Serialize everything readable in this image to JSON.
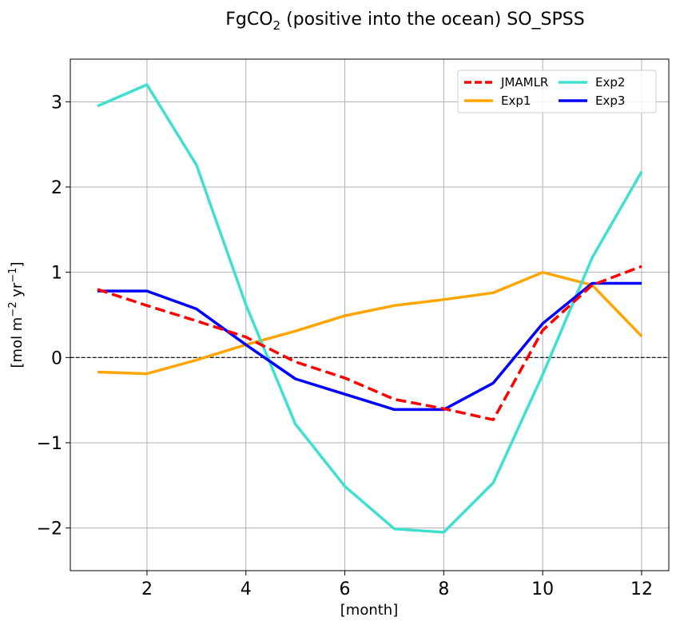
{
  "chart_data": {
    "type": "line",
    "title": {
      "main": "FgCO",
      "sub": "2",
      "rest": " (positive into the ocean) SO_SPSS"
    },
    "xlabel": "[month]",
    "ylabel": {
      "prefix": "[mol m",
      "sup1": "−2",
      "mid": " yr",
      "sup2": "−1",
      "suffix": "]"
    },
    "xlim": [
      0.45,
      12.55
    ],
    "ylim": [
      -2.5,
      3.5
    ],
    "xticks": [
      2,
      4,
      6,
      8,
      10,
      12
    ],
    "xtick_labels": [
      "2",
      "4",
      "6",
      "8",
      "10",
      "12"
    ],
    "yticks": [
      -2,
      -1,
      0,
      1,
      2,
      3
    ],
    "ytick_labels": [
      "−2",
      "−1",
      "0",
      "1",
      "2",
      "3"
    ],
    "grid": true,
    "zero_line": true,
    "legend_position": "top-right",
    "x": [
      1,
      2,
      3,
      4,
      5,
      6,
      7,
      8,
      9,
      10,
      11,
      12
    ],
    "series": [
      {
        "name": "JMAMLR",
        "color": "#ff0000",
        "dashed": true,
        "values": [
          0.8,
          0.61,
          0.43,
          0.24,
          -0.05,
          -0.24,
          -0.49,
          -0.6,
          -0.73,
          0.32,
          0.85,
          1.07
        ]
      },
      {
        "name": "Exp1",
        "color": "#ffa500",
        "dashed": false,
        "values": [
          -0.17,
          -0.19,
          -0.03,
          0.15,
          0.31,
          0.49,
          0.61,
          0.68,
          0.76,
          1.0,
          0.85,
          0.25
        ]
      },
      {
        "name": "Exp2",
        "color": "#40e0d0",
        "dashed": false,
        "values": [
          2.95,
          3.2,
          2.26,
          0.62,
          -0.78,
          -1.51,
          -2.01,
          -2.05,
          -1.47,
          -0.2,
          1.17,
          2.18
        ]
      },
      {
        "name": "Exp3",
        "color": "#0000ff",
        "dashed": false,
        "values": [
          0.78,
          0.78,
          0.57,
          0.15,
          -0.25,
          -0.43,
          -0.61,
          -0.61,
          -0.3,
          0.4,
          0.87,
          0.87
        ]
      }
    ]
  }
}
